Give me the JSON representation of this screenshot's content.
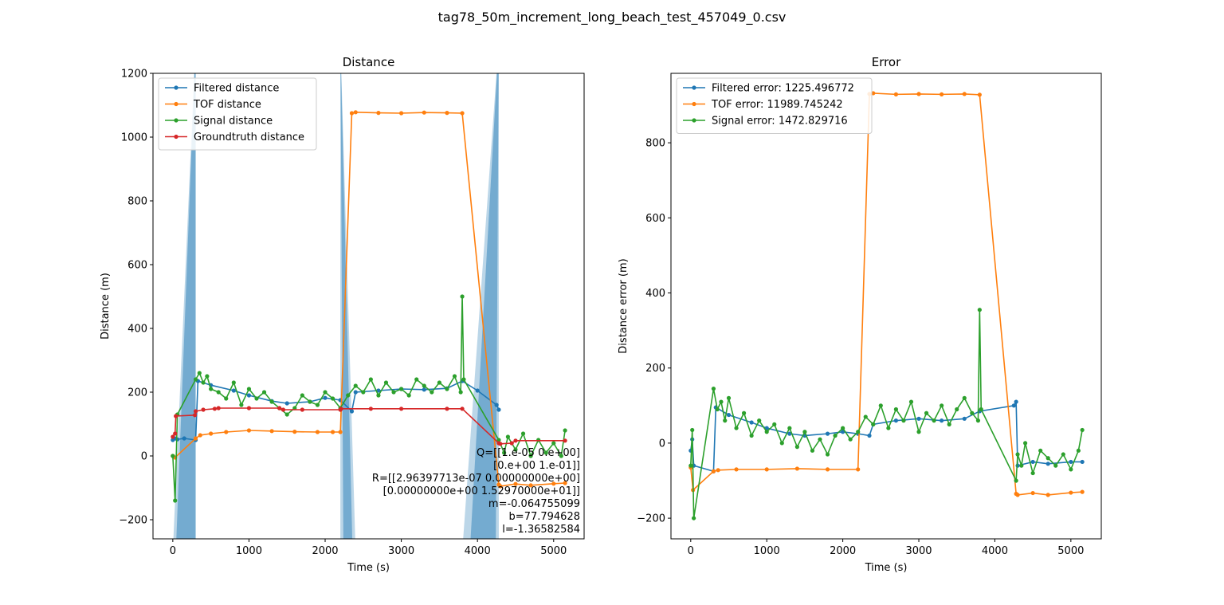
{
  "figure_title": "tag78_50m_increment_long_beach_test_457049_0.csv",
  "chart_data": [
    {
      "type": "line",
      "title": "Distance",
      "xlabel": "Time (s)",
      "ylabel": "Distance (m)",
      "xlim": [
        -260,
        5400
      ],
      "ylim": [
        -260,
        1200
      ],
      "x_ticks": [
        0,
        1000,
        2000,
        3000,
        4000,
        5000
      ],
      "x_tick_labels": [
        "0",
        "1000",
        "2000",
        "3000",
        "4000",
        "5000"
      ],
      "y_ticks": [
        -200,
        0,
        200,
        400,
        600,
        800,
        1000,
        1200
      ],
      "y_tick_labels": [
        "−200",
        "0",
        "200",
        "400",
        "600",
        "800",
        "1000",
        "1200"
      ],
      "legend_position": "upper-left",
      "grid": false,
      "series": [
        {
          "name": "Filtered distance",
          "color": "#1f77b4",
          "x": [
            0,
            30,
            60,
            150,
            300,
            330,
            500,
            800,
            1000,
            1300,
            1500,
            1800,
            2000,
            2200,
            2350,
            2400,
            2700,
            3000,
            3300,
            3600,
            3800,
            4000,
            4250,
            4280
          ],
          "y": [
            50,
            55,
            52,
            55,
            50,
            235,
            222,
            205,
            190,
            172,
            165,
            170,
            182,
            175,
            140,
            200,
            205,
            210,
            208,
            212,
            235,
            205,
            160,
            145
          ]
        },
        {
          "name": "TOF distance",
          "color": "#ff7f0e",
          "x": [
            0,
            30,
            300,
            360,
            500,
            700,
            1000,
            1300,
            1600,
            1900,
            2100,
            2200,
            2350,
            2400,
            2700,
            3000,
            3300,
            3600,
            3800,
            4280,
            4300,
            4500,
            4700,
            5000,
            5150
          ],
          "y": [
            0,
            -5,
            55,
            65,
            70,
            75,
            80,
            78,
            76,
            75,
            75,
            75,
            1075,
            1078,
            1076,
            1075,
            1077,
            1076,
            1075,
            -90,
            -95,
            -88,
            -92,
            -87,
            -85
          ]
        },
        {
          "name": "Signal distance",
          "color": "#2ca02c",
          "x": [
            0,
            30,
            60,
            300,
            350,
            400,
            450,
            500,
            600,
            700,
            800,
            900,
            1000,
            1100,
            1200,
            1300,
            1400,
            1500,
            1600,
            1700,
            1800,
            1900,
            2000,
            2100,
            2200,
            2300,
            2400,
            2500,
            2600,
            2700,
            2800,
            2900,
            3000,
            3100,
            3200,
            3300,
            3400,
            3500,
            3600,
            3700,
            3780,
            3800,
            3820,
            4280,
            4350,
            4400,
            4500,
            4600,
            4700,
            4800,
            4900,
            5000,
            5100,
            5150
          ],
          "y": [
            0,
            -140,
            130,
            240,
            260,
            230,
            250,
            210,
            200,
            180,
            230,
            160,
            210,
            180,
            200,
            170,
            150,
            130,
            150,
            190,
            170,
            160,
            200,
            180,
            150,
            190,
            220,
            200,
            240,
            190,
            230,
            200,
            210,
            190,
            240,
            220,
            200,
            230,
            210,
            250,
            200,
            500,
            240,
            50,
            10,
            60,
            20,
            70,
            0,
            50,
            10,
            40,
            0,
            80
          ]
        },
        {
          "name": "Groundtruth distance",
          "color": "#d62728",
          "x": [
            0,
            30,
            40,
            290,
            300,
            400,
            550,
            600,
            1000,
            1400,
            1450,
            1700,
            2200,
            2210,
            2600,
            3000,
            3600,
            3800,
            4280,
            4300,
            4450,
            4500,
            5150
          ],
          "y": [
            60,
            70,
            125,
            128,
            140,
            145,
            148,
            150,
            150,
            150,
            145,
            145,
            145,
            148,
            148,
            148,
            148,
            148,
            40,
            38,
            40,
            48,
            48
          ]
        }
      ],
      "annotation_lines": [
        "Q=[[1.e-05 0.e+00]",
        " [0.e+00 1.e-01]]",
        "R=[[2.96397713e-07 0.00000000e+00]",
        " [0.00000000e+00 1.52970000e+01]]",
        "m=-0.064755099",
        "b=77.794628",
        "l=-1.36582584"
      ]
    },
    {
      "type": "line",
      "title": "Error",
      "xlabel": "Time (s)",
      "ylabel": "Distance error (m)",
      "xlim": [
        -260,
        5400
      ],
      "ylim": [
        -255,
        985
      ],
      "x_ticks": [
        0,
        1000,
        2000,
        3000,
        4000,
        5000
      ],
      "x_tick_labels": [
        "0",
        "1000",
        "2000",
        "3000",
        "4000",
        "5000"
      ],
      "y_ticks": [
        -200,
        0,
        200,
        400,
        600,
        800
      ],
      "y_tick_labels": [
        "−200",
        "0",
        "200",
        "400",
        "600",
        "800"
      ],
      "legend_position": "upper-left",
      "grid": false,
      "series": [
        {
          "name": "Filtered error: 1225.496772",
          "color": "#1f77b4",
          "x": [
            0,
            20,
            40,
            300,
            330,
            500,
            800,
            1000,
            1300,
            1500,
            1800,
            2000,
            2200,
            2350,
            2400,
            2700,
            3000,
            3300,
            3600,
            3800,
            4250,
            4280,
            4300,
            4500,
            4700,
            5000,
            5150
          ],
          "y": [
            -20,
            10,
            -60,
            -75,
            95,
            75,
            55,
            40,
            25,
            20,
            25,
            30,
            25,
            20,
            50,
            60,
            65,
            60,
            65,
            85,
            100,
            110,
            -60,
            -50,
            -55,
            -50,
            -50
          ]
        },
        {
          "name": "TOF error: 11989.745242",
          "color": "#ff7f0e",
          "x": [
            0,
            30,
            300,
            360,
            600,
            1000,
            1400,
            1800,
            2200,
            2350,
            2400,
            2700,
            3000,
            3300,
            3600,
            3800,
            4280,
            4300,
            4500,
            4700,
            5000,
            5150
          ],
          "y": [
            -65,
            -125,
            -75,
            -72,
            -70,
            -70,
            -68,
            -70,
            -70,
            930,
            932,
            929,
            930,
            929,
            930,
            928,
            -135,
            -138,
            -133,
            -138,
            -132,
            -130
          ]
        },
        {
          "name": "Signal error: 1472.829716",
          "color": "#2ca02c",
          "x": [
            0,
            20,
            40,
            300,
            350,
            400,
            450,
            500,
            600,
            700,
            800,
            900,
            1000,
            1100,
            1200,
            1300,
            1400,
            1500,
            1600,
            1700,
            1800,
            1900,
            2000,
            2100,
            2200,
            2300,
            2400,
            2500,
            2600,
            2700,
            2800,
            2900,
            3000,
            3100,
            3200,
            3300,
            3400,
            3500,
            3600,
            3700,
            3780,
            3800,
            3820,
            4280,
            4300,
            4350,
            4400,
            4500,
            4600,
            4700,
            4800,
            4900,
            5000,
            5100,
            5150
          ],
          "y": [
            -60,
            35,
            -200,
            145,
            90,
            110,
            60,
            120,
            40,
            80,
            20,
            60,
            30,
            50,
            0,
            40,
            -10,
            30,
            -20,
            10,
            -30,
            20,
            40,
            10,
            30,
            70,
            50,
            100,
            40,
            90,
            60,
            110,
            30,
            80,
            60,
            100,
            50,
            90,
            120,
            80,
            60,
            355,
            90,
            -100,
            -30,
            -60,
            0,
            -80,
            -20,
            -40,
            -60,
            -30,
            -70,
            -20,
            35
          ]
        }
      ]
    }
  ]
}
